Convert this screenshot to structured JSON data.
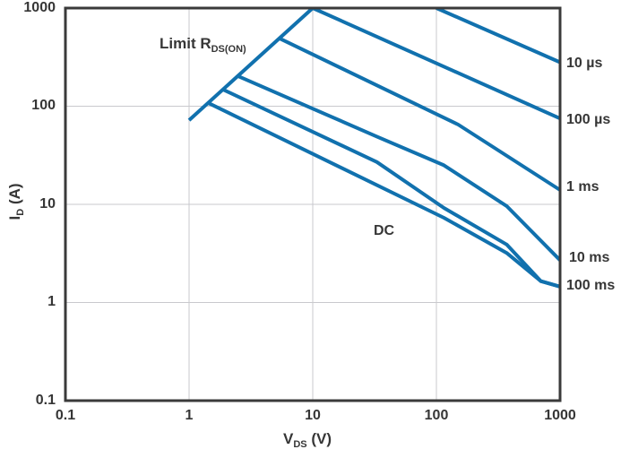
{
  "chart_data": {
    "type": "line",
    "title": "",
    "description": "MOSFET safe operating area (SOA) log-log plot",
    "x_axis": {
      "label_main": "V",
      "label_sub": "DS",
      "label_unit": " (V)",
      "scale": "log",
      "range": [
        0.1,
        1000
      ],
      "ticks": [
        "0.1",
        "1",
        "10",
        "100",
        "1000"
      ]
    },
    "y_axis": {
      "label_main": "I",
      "label_sub": "D",
      "label_unit": " (A)",
      "scale": "log",
      "range": [
        0.1,
        1000
      ],
      "ticks": [
        "1000",
        "100",
        "10",
        "1",
        "0.1"
      ]
    },
    "grid": "decade gridlines",
    "legend_position": "labels at right edge and inline annotations",
    "series": [
      {
        "name": "limit-rdson",
        "label_main": "Limit R",
        "label_sub": "DS(ON)",
        "points": [
          [
            1,
            72
          ],
          [
            10,
            1000
          ]
        ]
      },
      {
        "name": "pulse-10us",
        "label": "10 µs",
        "points": [
          [
            100,
            1000
          ],
          [
            1000,
            280
          ]
        ]
      },
      {
        "name": "pulse-100us",
        "label": "100 µs",
        "points": [
          [
            10,
            1000
          ],
          [
            1000,
            75
          ]
        ]
      },
      {
        "name": "pulse-1ms",
        "label": "1 ms",
        "points": [
          [
            5.4,
            490
          ],
          [
            150,
            65
          ],
          [
            1000,
            14
          ]
        ]
      },
      {
        "name": "pulse-10ms",
        "label": "10 ms",
        "points": [
          [
            2.5,
            202
          ],
          [
            33,
            49
          ],
          [
            115,
            25
          ],
          [
            370,
            9.6
          ],
          [
            1000,
            2.7
          ]
        ]
      },
      {
        "name": "pulse-100ms",
        "label": "100 ms",
        "points": [
          [
            1.9,
            147
          ],
          [
            33,
            27
          ],
          [
            115,
            9.2
          ],
          [
            370,
            3.9
          ],
          [
            700,
            1.65
          ],
          [
            1000,
            1.45
          ]
        ]
      },
      {
        "name": "dc",
        "label": "DC",
        "points": [
          [
            1.45,
            107
          ],
          [
            115,
            7.3
          ],
          [
            370,
            3.2
          ],
          [
            700,
            1.65
          ],
          [
            1000,
            1.45
          ]
        ]
      }
    ],
    "colors": {
      "line": "#1171ae",
      "text": "#363636",
      "grid": "#c9c9cd",
      "frame": "#3a3a3a",
      "background": "#ffffff"
    }
  }
}
